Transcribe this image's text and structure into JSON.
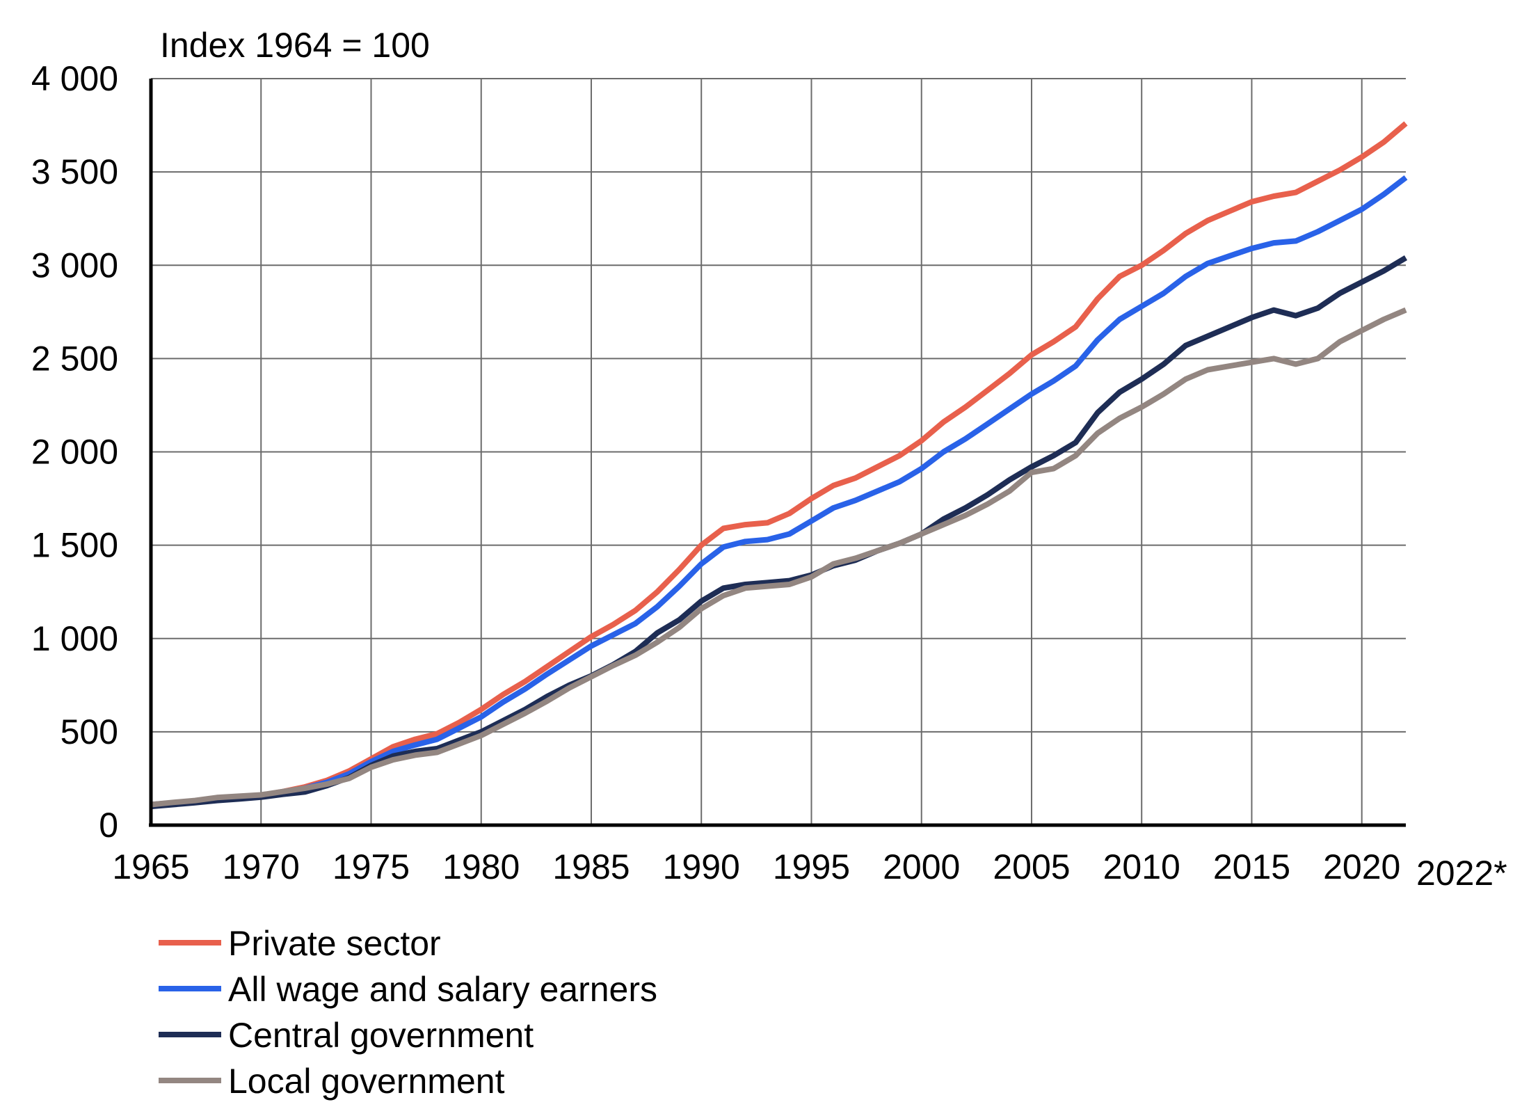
{
  "chart_data": {
    "type": "line",
    "ylabel": "Index 1964 = 100",
    "xlim": [
      1965,
      2022
    ],
    "ylim": [
      0,
      4000
    ],
    "grid": true,
    "legend_position": "bottom-left",
    "x_ticks": [
      {
        "value": 1965,
        "label": "1965"
      },
      {
        "value": 1970,
        "label": "1970"
      },
      {
        "value": 1975,
        "label": "1975"
      },
      {
        "value": 1980,
        "label": "1980"
      },
      {
        "value": 1985,
        "label": "1985"
      },
      {
        "value": 1990,
        "label": "1990"
      },
      {
        "value": 1995,
        "label": "1995"
      },
      {
        "value": 2000,
        "label": "2000"
      },
      {
        "value": 2005,
        "label": "2005"
      },
      {
        "value": 2010,
        "label": "2010"
      },
      {
        "value": 2015,
        "label": "2015"
      },
      {
        "value": 2020,
        "label": "2020"
      },
      {
        "value": 2022,
        "label": "2022*"
      }
    ],
    "y_ticks": [
      {
        "value": 0,
        "label": "0"
      },
      {
        "value": 500,
        "label": "500"
      },
      {
        "value": 1000,
        "label": "1 000"
      },
      {
        "value": 1500,
        "label": "1 500"
      },
      {
        "value": 2000,
        "label": "2 000"
      },
      {
        "value": 2500,
        "label": "2 500"
      },
      {
        "value": 3000,
        "label": "3 000"
      },
      {
        "value": 3500,
        "label": "3 500"
      },
      {
        "value": 4000,
        "label": "4 000"
      }
    ],
    "x": [
      1965,
      1966,
      1967,
      1968,
      1969,
      1970,
      1971,
      1972,
      1973,
      1974,
      1975,
      1976,
      1977,
      1978,
      1979,
      1980,
      1981,
      1982,
      1983,
      1984,
      1985,
      1986,
      1987,
      1988,
      1989,
      1990,
      1991,
      1992,
      1993,
      1994,
      1995,
      1996,
      1997,
      1998,
      1999,
      2000,
      2001,
      2002,
      2003,
      2004,
      2005,
      2006,
      2007,
      2008,
      2009,
      2010,
      2011,
      2012,
      2013,
      2014,
      2015,
      2016,
      2017,
      2018,
      2019,
      2020,
      2021,
      2022
    ],
    "series": [
      {
        "name": "Private sector",
        "color": "#e8604c",
        "values": [
          110,
          120,
          130,
          145,
          152,
          160,
          180,
          205,
          240,
          290,
          355,
          420,
          460,
          490,
          550,
          620,
          700,
          770,
          850,
          930,
          1010,
          1075,
          1150,
          1250,
          1370,
          1500,
          1590,
          1610,
          1620,
          1670,
          1750,
          1820,
          1860,
          1920,
          1980,
          2060,
          2160,
          2240,
          2330,
          2420,
          2520,
          2590,
          2670,
          2820,
          2940,
          3000,
          3080,
          3170,
          3240,
          3290,
          3340,
          3370,
          3390,
          3450,
          3510,
          3580,
          3660,
          3760
        ]
      },
      {
        "name": "All wage and salary earners",
        "color": "#2962e8",
        "values": [
          110,
          120,
          130,
          142,
          150,
          158,
          175,
          198,
          230,
          275,
          340,
          395,
          430,
          460,
          520,
          580,
          660,
          730,
          810,
          885,
          960,
          1020,
          1080,
          1170,
          1280,
          1400,
          1490,
          1520,
          1530,
          1560,
          1630,
          1700,
          1740,
          1790,
          1840,
          1910,
          2000,
          2070,
          2150,
          2230,
          2310,
          2380,
          2460,
          2600,
          2710,
          2780,
          2850,
          2940,
          3010,
          3050,
          3090,
          3120,
          3130,
          3180,
          3240,
          3300,
          3380,
          3470
        ]
      },
      {
        "name": "Central government",
        "color": "#1e2d55",
        "values": [
          100,
          110,
          120,
          132,
          140,
          150,
          165,
          178,
          212,
          255,
          320,
          370,
          395,
          410,
          455,
          500,
          560,
          620,
          690,
          750,
          800,
          860,
          930,
          1030,
          1100,
          1200,
          1270,
          1290,
          1300,
          1310,
          1340,
          1390,
          1420,
          1470,
          1510,
          1560,
          1640,
          1700,
          1770,
          1850,
          1920,
          1980,
          2050,
          2210,
          2320,
          2390,
          2470,
          2570,
          2620,
          2670,
          2720,
          2760,
          2730,
          2770,
          2850,
          2910,
          2970,
          3040
        ]
      },
      {
        "name": "Local government",
        "color": "#938681",
        "values": [
          110,
          122,
          132,
          148,
          155,
          162,
          180,
          198,
          220,
          250,
          310,
          350,
          375,
          390,
          435,
          480,
          540,
          600,
          665,
          735,
          795,
          855,
          910,
          980,
          1060,
          1160,
          1230,
          1270,
          1280,
          1290,
          1330,
          1400,
          1430,
          1470,
          1510,
          1560,
          1610,
          1660,
          1720,
          1790,
          1890,
          1910,
          1980,
          2100,
          2180,
          2240,
          2310,
          2390,
          2440,
          2460,
          2480,
          2500,
          2470,
          2500,
          2590,
          2650,
          2710,
          2760
        ]
      }
    ]
  }
}
